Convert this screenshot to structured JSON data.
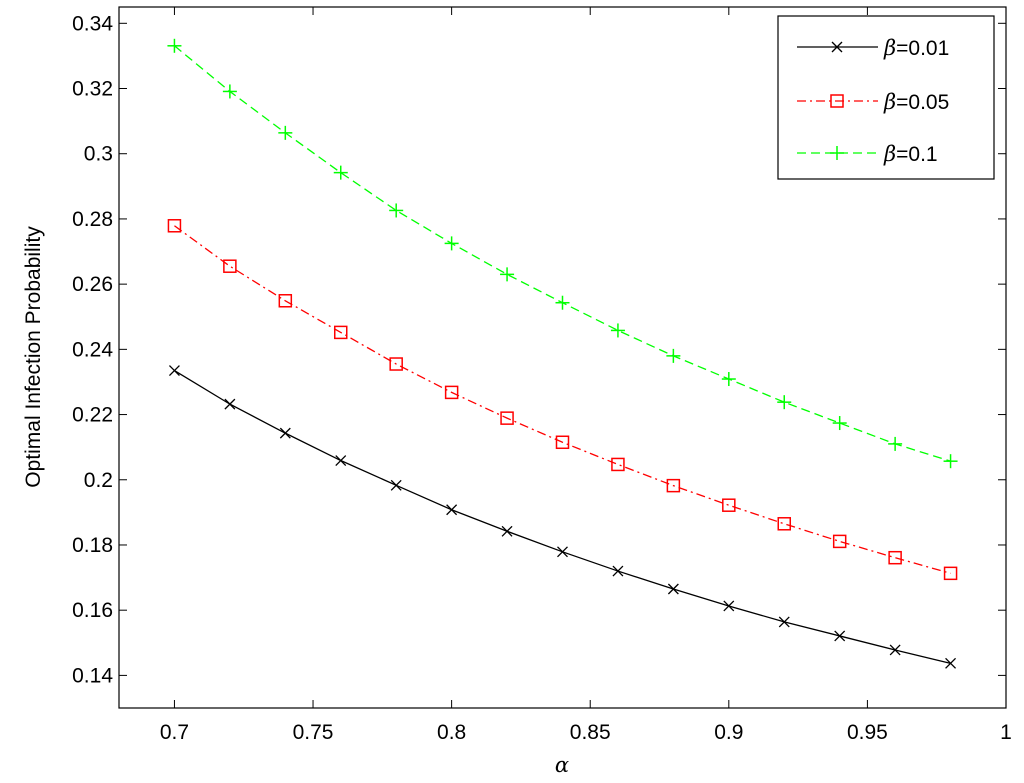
{
  "chart_data": {
    "type": "line",
    "title": "",
    "xlabel": "α",
    "ylabel": "Optimal Infection Probability",
    "xlim": [
      0.68,
      1.0
    ],
    "ylim": [
      0.13,
      0.345
    ],
    "xticks": [
      0.7,
      0.75,
      0.8,
      0.85,
      0.9,
      0.95,
      1
    ],
    "xtick_labels": [
      "0.7",
      "0.75",
      "0.8",
      "0.85",
      "0.9",
      "0.95",
      "1"
    ],
    "yticks": [
      0.14,
      0.16,
      0.18,
      0.2,
      0.22,
      0.24,
      0.26,
      0.28,
      0.3,
      0.32,
      0.34
    ],
    "ytick_labels": [
      "0.14",
      "0.16",
      "0.18",
      "0.2",
      "0.22",
      "0.24",
      "0.26",
      "0.28",
      "0.3",
      "0.32",
      "0.34"
    ],
    "grid": false,
    "legend_position": "top-right",
    "x": [
      0.7,
      0.72,
      0.74,
      0.76,
      0.78,
      0.8,
      0.82,
      0.84,
      0.86,
      0.88,
      0.9,
      0.92,
      0.94,
      0.96,
      0.98
    ],
    "series": [
      {
        "name": "β=0.01",
        "legend_symbol": "β",
        "legend_value": "=0.01",
        "color": "#000000",
        "line_style": "solid",
        "marker": "x",
        "values": [
          0.2335,
          0.2232,
          0.2143,
          0.2059,
          0.1983,
          0.1908,
          0.1842,
          0.1779,
          0.172,
          0.1665,
          0.1613,
          0.1564,
          0.1521,
          0.1478,
          0.1437
        ]
      },
      {
        "name": "β=0.05",
        "legend_symbol": "β",
        "legend_value": "=0.05",
        "color": "#ff0000",
        "line_style": "dashdot",
        "marker": "square",
        "values": [
          0.2779,
          0.2655,
          0.2549,
          0.2452,
          0.2355,
          0.2268,
          0.2189,
          0.2115,
          0.2047,
          0.1982,
          0.1922,
          0.1865,
          0.1811,
          0.1761,
          0.1713
        ]
      },
      {
        "name": "β=0.1",
        "legend_symbol": "β",
        "legend_value": "=0.1",
        "color": "#00ff00",
        "line_style": "dashed",
        "marker": "plus",
        "values": [
          0.3331,
          0.3191,
          0.3064,
          0.2942,
          0.2826,
          0.2725,
          0.263,
          0.2543,
          0.2458,
          0.238,
          0.2309,
          0.2238,
          0.2174,
          0.211,
          0.2057
        ]
      }
    ]
  }
}
